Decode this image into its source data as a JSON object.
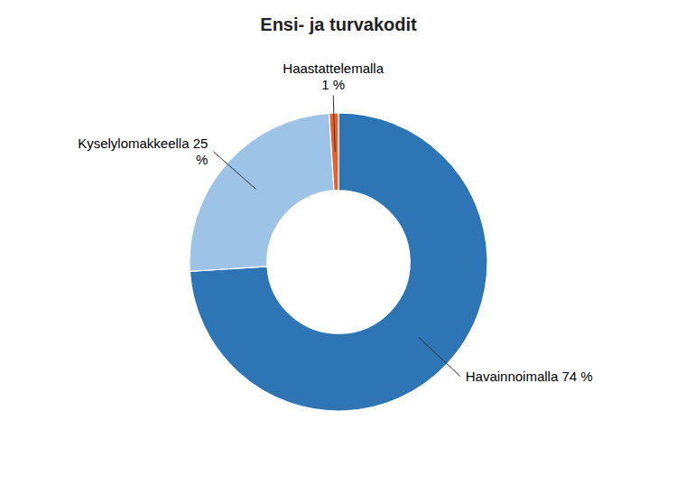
{
  "chart_data": {
    "type": "pie",
    "title": "Ensi- ja turvakodit",
    "values": [
      74,
      25,
      1
    ],
    "value_labels": [
      "Havainnoimalla 74 %",
      "Kyselylomakkeella 25\n%",
      "Haastattelemalla\n1 %"
    ],
    "colors": [
      "#2E75B6",
      "#9DC3E6",
      "#E8602C"
    ],
    "data_labels": true
  }
}
